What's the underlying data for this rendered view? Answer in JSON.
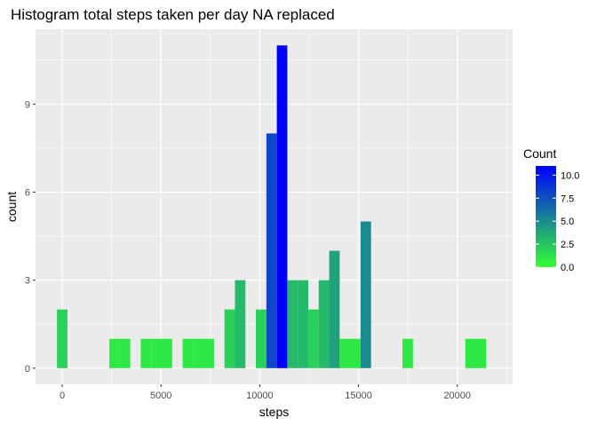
{
  "chart_data": {
    "type": "bar",
    "title": "Histogram total steps taken per day NA replaced",
    "xlabel": "steps",
    "ylabel": "count",
    "xlim": [
      -1350,
      22800
    ],
    "ylim": [
      -0.55,
      11.55
    ],
    "x_ticks": [
      0,
      5000,
      10000,
      15000,
      20000
    ],
    "x_tick_labels": [
      "0",
      "5000",
      "10000",
      "15000",
      "20000"
    ],
    "y_ticks": [
      0,
      3,
      6,
      9
    ],
    "y_tick_labels": [
      "0",
      "3",
      "6",
      "9"
    ],
    "bin_width": 530,
    "x": [
      0,
      2650,
      3180,
      4240,
      4770,
      5300,
      6360,
      6890,
      7420,
      8480,
      9010,
      10070,
      10600,
      11130,
      11660,
      12190,
      12720,
      13250,
      13780,
      14310,
      14840,
      15370,
      17490,
      20670,
      21200
    ],
    "values": [
      2,
      1,
      1,
      1,
      1,
      1,
      1,
      1,
      1,
      2,
      3,
      2,
      8,
      11,
      3,
      3,
      2,
      3,
      4,
      1,
      1,
      5,
      1,
      1,
      1
    ],
    "grid": true,
    "legend": {
      "title": "Count",
      "placement": "right",
      "ticks": [
        "0.0",
        "2.5",
        "5.0",
        "7.5",
        "10.0"
      ],
      "tick_values": [
        0,
        2.5,
        5,
        7.5,
        10
      ],
      "min": 0,
      "max": 11
    },
    "colors": {
      "low": "#33ff33",
      "high": "#0000ff",
      "panel": "#ebebeb",
      "grid_major": "#ffffff",
      "text": "#4d4d4d"
    }
  }
}
